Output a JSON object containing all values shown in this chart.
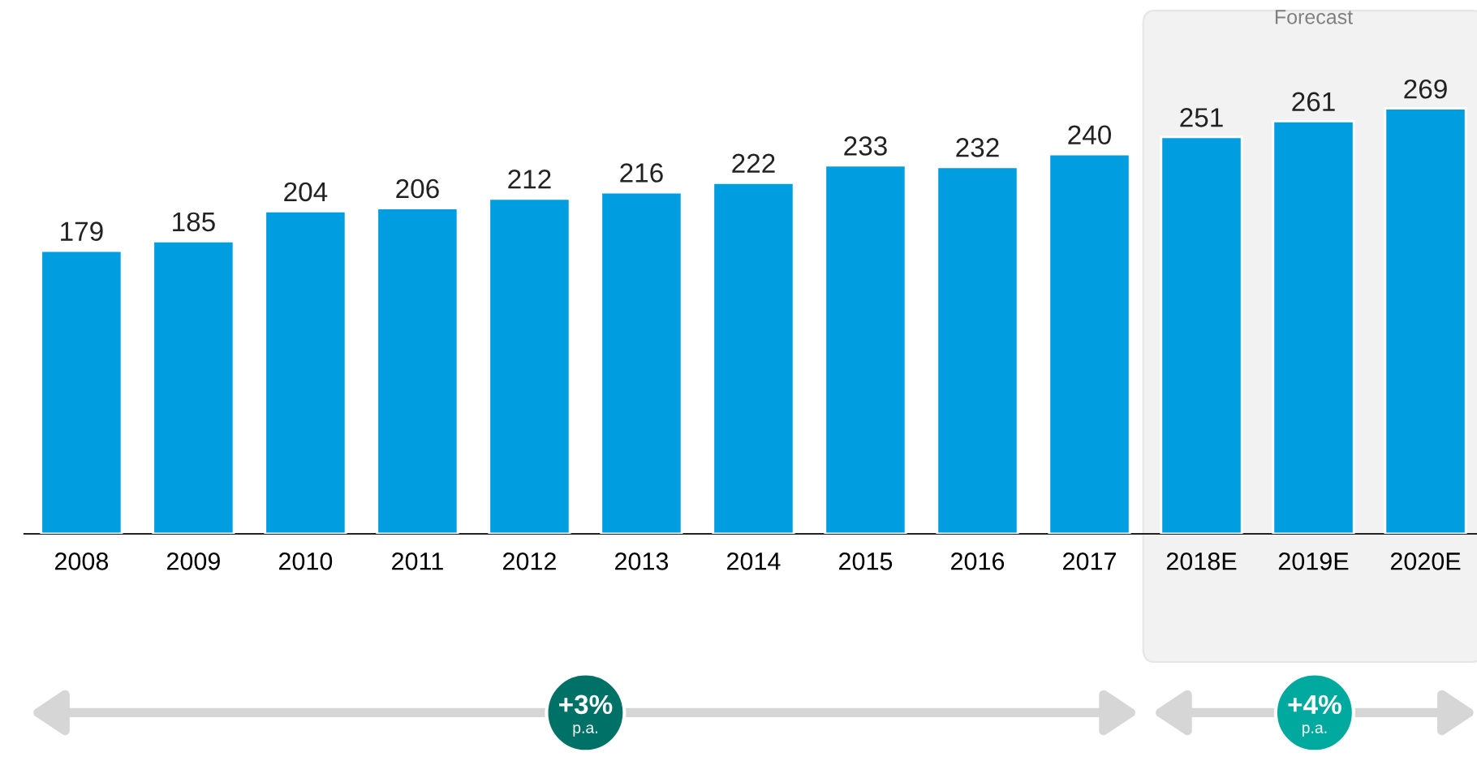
{
  "chart_data": {
    "type": "bar",
    "categories": [
      "2008",
      "2009",
      "2010",
      "2011",
      "2012",
      "2013",
      "2014",
      "2015",
      "2016",
      "2017",
      "2018E",
      "2019E",
      "2020E"
    ],
    "values": [
      179,
      185,
      204,
      206,
      212,
      216,
      222,
      233,
      232,
      240,
      251,
      261,
      269
    ],
    "color": "#009ee0",
    "data_labels": true,
    "bands": [
      {
        "axis": "x",
        "from": "2018E",
        "to": "2020E",
        "label": "Forecast",
        "color": "#f2f2f2"
      }
    ],
    "annotations": [
      "+3%\np.a.",
      "+4%\np.a."
    ]
  }
}
